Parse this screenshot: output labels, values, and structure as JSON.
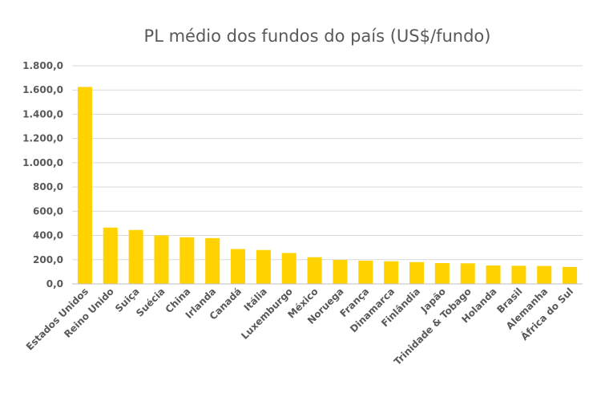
{
  "chart_data": {
    "type": "bar",
    "title": "PL médio dos fundos do país (US$/fundo)",
    "xlabel": "",
    "ylabel": "",
    "categories": [
      "Estados Unidos",
      "Reino Unido",
      "Suiça",
      "Suécia",
      "China",
      "Irlanda",
      "Canadá",
      "Itália",
      "Luxemburgo",
      "México",
      "Noruega",
      "França",
      "Dinamarca",
      "Finlândia",
      "Japão",
      "Trinidade & Tobago",
      "Holanda",
      "Brasil",
      "Alemanha",
      "África do Sul"
    ],
    "values": [
      1625,
      465,
      445,
      400,
      385,
      378,
      288,
      280,
      255,
      220,
      198,
      192,
      187,
      180,
      172,
      170,
      152,
      150,
      148,
      140
    ],
    "ylim": [
      0,
      1800
    ],
    "yticks": [
      "0,0",
      "200,0",
      "400,0",
      "600,0",
      "800,0",
      "1.000,0",
      "1.200,0",
      "1.400,0",
      "1.600,0",
      "1.800,0"
    ],
    "grid": true,
    "bar_color": "#ffd200"
  }
}
